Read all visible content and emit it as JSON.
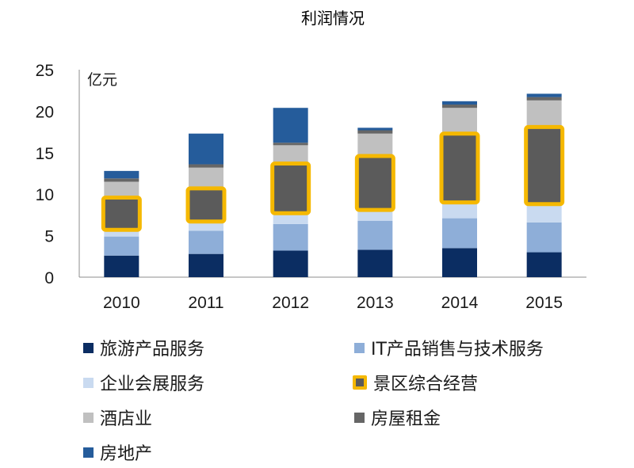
{
  "chart_data": {
    "type": "bar",
    "stacked": true,
    "title": "利润情况",
    "unit_label": "亿元",
    "categories": [
      "2010",
      "2011",
      "2012",
      "2013",
      "2014",
      "2015"
    ],
    "ylim": [
      0,
      25
    ],
    "yticks": [
      0,
      5,
      10,
      15,
      20,
      25
    ],
    "grid": false,
    "legend_position": "bottom",
    "series": [
      {
        "name": "旅游产品服务",
        "color": "#0b2d62",
        "values": [
          2.6,
          2.8,
          3.2,
          3.3,
          3.5,
          3.0
        ]
      },
      {
        "name": "IT产品销售与技术服务",
        "color": "#8eaed8",
        "values": [
          2.3,
          2.8,
          3.2,
          3.5,
          3.6,
          3.6
        ]
      },
      {
        "name": "企业会展服务",
        "color": "#c9daf0",
        "values": [
          0.9,
          1.2,
          1.4,
          1.4,
          2.0,
          2.3
        ]
      },
      {
        "name": "景区综合经营",
        "color": "#5b5b5b",
        "highlight": "#f5b800",
        "values": [
          3.7,
          3.8,
          5.8,
          6.3,
          8.1,
          9.1
        ]
      },
      {
        "name": "酒店业",
        "color": "#c0c0c0",
        "values": [
          2.0,
          2.6,
          2.3,
          2.8,
          3.2,
          3.3
        ]
      },
      {
        "name": "房屋租金",
        "color": "#666666",
        "values": [
          0.4,
          0.4,
          0.3,
          0.4,
          0.4,
          0.4
        ]
      },
      {
        "name": "房地产",
        "color": "#255c9b",
        "values": [
          0.9,
          3.7,
          4.2,
          0.3,
          0.4,
          0.4
        ]
      }
    ]
  }
}
